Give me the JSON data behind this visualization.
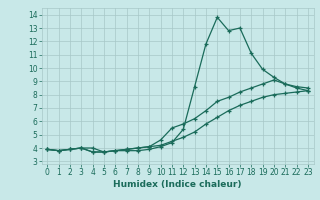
{
  "xlabel": "Humidex (Indice chaleur)",
  "xlim": [
    -0.5,
    23.5
  ],
  "ylim": [
    2.8,
    14.5
  ],
  "yticks": [
    3,
    4,
    5,
    6,
    7,
    8,
    9,
    10,
    11,
    12,
    13,
    14
  ],
  "xticks": [
    0,
    1,
    2,
    3,
    4,
    5,
    6,
    7,
    8,
    9,
    10,
    11,
    12,
    13,
    14,
    15,
    16,
    17,
    18,
    19,
    20,
    21,
    22,
    23
  ],
  "bg_color": "#c8e8e8",
  "grid_color": "#a8c8c8",
  "line_color": "#1a6b5a",
  "line1_y": [
    3.9,
    3.8,
    3.9,
    4.0,
    4.0,
    3.7,
    3.8,
    3.8,
    3.8,
    3.9,
    4.1,
    4.4,
    5.4,
    8.6,
    11.8,
    13.8,
    12.8,
    13.0,
    11.1,
    9.9,
    9.3,
    8.8,
    8.6,
    8.5
  ],
  "line2_y": [
    3.9,
    3.8,
    3.9,
    4.0,
    3.7,
    3.7,
    3.8,
    3.9,
    4.0,
    4.1,
    4.6,
    5.5,
    5.8,
    6.2,
    6.8,
    7.5,
    7.8,
    8.2,
    8.5,
    8.8,
    9.1,
    8.8,
    8.5,
    8.3
  ],
  "line3_y": [
    3.9,
    3.8,
    3.9,
    4.0,
    3.7,
    3.7,
    3.8,
    3.9,
    4.0,
    4.1,
    4.2,
    4.5,
    4.8,
    5.2,
    5.8,
    6.3,
    6.8,
    7.2,
    7.5,
    7.8,
    8.0,
    8.1,
    8.2,
    8.3
  ],
  "xlabel_fontsize": 6.5,
  "tick_fontsize": 5.5
}
